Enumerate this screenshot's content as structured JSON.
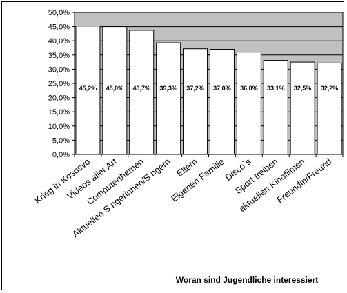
{
  "chart_data": {
    "type": "bar",
    "title": "Woran sind Jugendliche interessiert",
    "xlabel": "",
    "ylabel": "",
    "categories": [
      "Krieg in Kososvo",
      "Videos aller Art",
      "Computerthemen",
      "Aktuellen S ngerinnen/S ngern",
      "Eltern",
      "Eigenen Familie",
      "Disco`s",
      "Sport treiben",
      "aktuellen Kinofilmen",
      "Freundin/Freund"
    ],
    "values": [
      45.2,
      45.0,
      43.7,
      39.3,
      37.2,
      37.0,
      36.0,
      33.1,
      32.5,
      32.2
    ],
    "data_labels": [
      "45,2%",
      "45,0%",
      "43,7%",
      "39,3%",
      "37,2%",
      "37,0%",
      "36,0%",
      "33,1%",
      "32,5%",
      "32,2%"
    ],
    "ylim": [
      0,
      50
    ],
    "y_ticks": [
      0,
      5,
      10,
      15,
      20,
      25,
      30,
      35,
      40,
      45,
      50
    ],
    "y_tick_labels": [
      "0,0%",
      "5,0%",
      "10,0%",
      "15,0%",
      "20,0%",
      "25,0%",
      "30,0%",
      "35,0%",
      "40,0%",
      "45,0%",
      "50,0%"
    ],
    "grid": true,
    "legend": "none",
    "colors": {
      "plot_background": "#c0c0c0",
      "bar_fill": "#ffffff",
      "bar_stroke": "#000000",
      "gridline": "#000000"
    }
  }
}
